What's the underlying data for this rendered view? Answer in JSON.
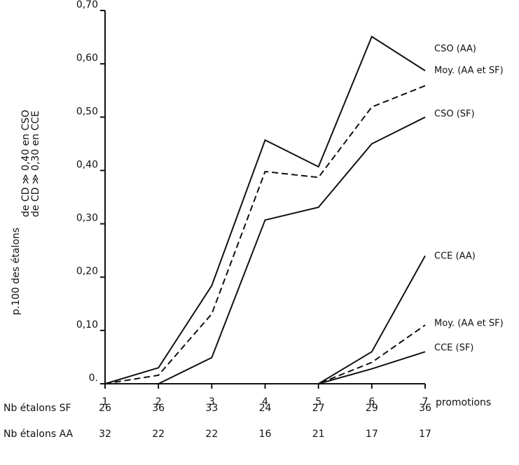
{
  "chart_data": {
    "type": "line",
    "y_label_lines": [
      "p.100 des étalons",
      "de CD ≫ 0,40 en CSO",
      "de CD ≫ 0,30 en CCE"
    ],
    "x_label": "promotions",
    "x": [
      1,
      2,
      3,
      4,
      5,
      6,
      7
    ],
    "xlim": [
      1,
      7
    ],
    "xticks": [
      1,
      2,
      3,
      4,
      5,
      6,
      7
    ],
    "ylim": [
      0,
      0.7
    ],
    "yticks": [
      {
        "value": 0,
        "label": "0."
      },
      {
        "value": 0.1,
        "label": "0,10"
      },
      {
        "value": 0.2,
        "label": "0,20"
      },
      {
        "value": 0.3,
        "label": "0,30"
      },
      {
        "value": 0.4,
        "label": "0,40"
      },
      {
        "value": 0.5,
        "label": "0,50"
      },
      {
        "value": 0.6,
        "label": "0,60"
      },
      {
        "value": 0.7,
        "label": "0,70"
      }
    ],
    "series": [
      {
        "name": "CSO (AA)",
        "color": "#111111",
        "style": "solid",
        "values": [
          0,
          0.03,
          0.184,
          0.457,
          0.407,
          0.651,
          0.587
        ]
      },
      {
        "name": "Moy. (AA et SF)",
        "color": "#111111",
        "style": "dashed",
        "values": [
          0,
          0.016,
          0.131,
          0.398,
          0.387,
          0.519,
          0.559
        ]
      },
      {
        "name": "CSO (SF)",
        "color": "#111111",
        "style": "solid",
        "values": [
          0,
          0,
          0.049,
          0.307,
          0.331,
          0.45,
          0.5
        ]
      },
      {
        "name": "CCE (AA)",
        "color": "#111111",
        "style": "solid",
        "values": [
          0,
          0,
          0,
          0,
          0,
          0.06,
          0.24
        ]
      },
      {
        "name": "Moy. (AA et SF)",
        "color": "#111111",
        "style": "dashed",
        "values": [
          0,
          0,
          0,
          0,
          0,
          0.04,
          0.11
        ]
      },
      {
        "name": "CCE (SF)",
        "color": "#111111",
        "style": "solid",
        "values": [
          0,
          0,
          0,
          0,
          0,
          0.028,
          0.06
        ]
      }
    ],
    "rows": [
      {
        "label": "Nb étalons SF",
        "values": [
          26,
          36,
          33,
          24,
          27,
          29,
          36
        ]
      },
      {
        "label": "Nb étalons AA",
        "values": [
          32,
          22,
          22,
          16,
          21,
          17,
          17
        ]
      }
    ]
  }
}
